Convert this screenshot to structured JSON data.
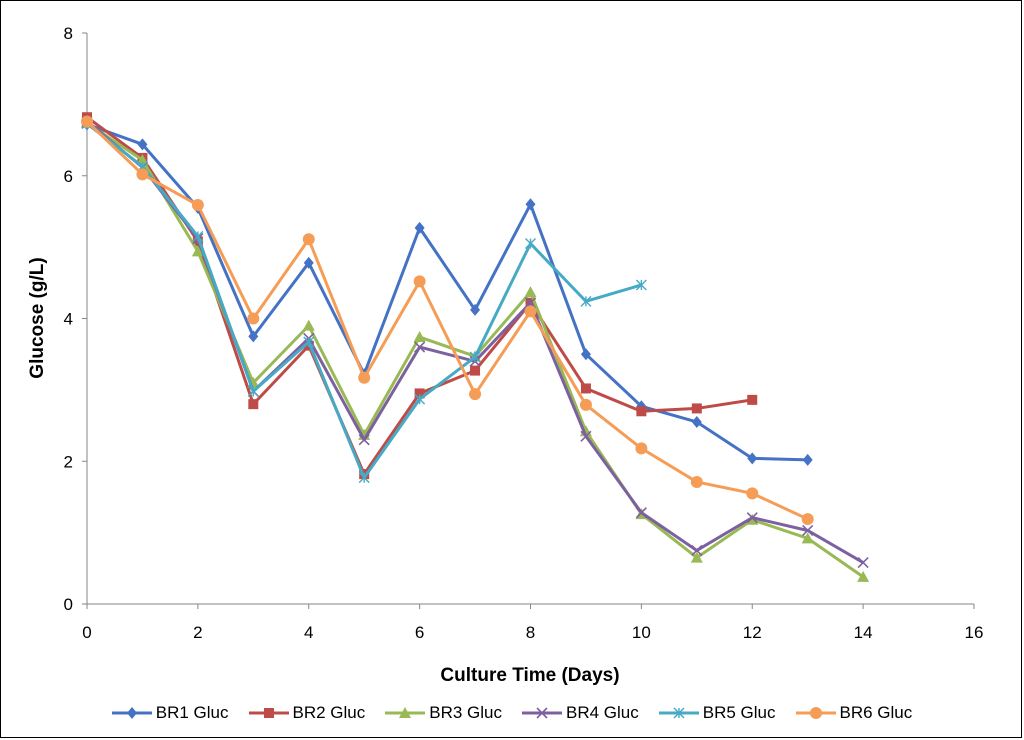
{
  "chart_data": {
    "type": "line",
    "xlabel": "Culture Time (Days)",
    "ylabel": "Glucose (g/L)",
    "xlim": [
      0,
      16
    ],
    "ylim": [
      0,
      8
    ],
    "xticks": [
      0,
      2,
      4,
      6,
      8,
      10,
      12,
      14,
      16
    ],
    "yticks": [
      0,
      2,
      4,
      6,
      8
    ],
    "grid": false,
    "legend_position": "bottom",
    "series": [
      {
        "name": "BR1 Gluc",
        "color": "#4472C4",
        "marker": "diamond",
        "x": [
          0,
          1,
          2,
          3,
          4,
          5,
          6,
          7,
          8,
          9,
          10,
          11,
          12,
          13
        ],
        "y": [
          6.72,
          6.44,
          5.55,
          3.75,
          4.78,
          3.22,
          5.27,
          4.12,
          5.6,
          3.5,
          2.77,
          2.55,
          2.04,
          2.02
        ]
      },
      {
        "name": "BR2 Gluc",
        "color": "#BE4B48",
        "marker": "square",
        "x": [
          0,
          1,
          2,
          3,
          4,
          5,
          6,
          7,
          8,
          9,
          10,
          11,
          12
        ],
        "y": [
          6.82,
          6.25,
          5.08,
          2.8,
          3.62,
          1.82,
          2.95,
          3.27,
          4.22,
          3.02,
          2.7,
          2.74,
          2.86
        ]
      },
      {
        "name": "BR3 Gluc",
        "color": "#98B954",
        "marker": "triangle",
        "x": [
          0,
          1,
          2,
          3,
          4,
          5,
          6,
          7,
          8,
          9,
          10,
          11,
          12,
          13,
          14
        ],
        "y": [
          6.74,
          6.22,
          4.94,
          3.1,
          3.9,
          2.37,
          3.74,
          3.47,
          4.37,
          2.42,
          1.26,
          0.65,
          1.18,
          0.92,
          0.38
        ]
      },
      {
        "name": "BR4 Gluc",
        "color": "#7D60A0",
        "marker": "x",
        "x": [
          0,
          1,
          2,
          3,
          4,
          5,
          6,
          7,
          8,
          9,
          10,
          11,
          12,
          13,
          14
        ],
        "y": [
          6.76,
          6.12,
          5.12,
          2.98,
          3.72,
          2.3,
          3.6,
          3.4,
          4.22,
          2.35,
          1.28,
          0.75,
          1.21,
          1.03,
          0.58
        ]
      },
      {
        "name": "BR5 Gluc",
        "color": "#46AAC5",
        "marker": "star",
        "x": [
          0,
          1,
          2,
          3,
          4,
          5,
          6,
          7,
          8,
          9,
          10
        ],
        "y": [
          6.73,
          6.13,
          5.15,
          2.98,
          3.67,
          1.77,
          2.87,
          3.46,
          5.05,
          4.24,
          4.47
        ]
      },
      {
        "name": "BR6 Gluc",
        "color": "#F59D56",
        "marker": "circle",
        "x": [
          0,
          1,
          2,
          3,
          4,
          5,
          6,
          7,
          8,
          9,
          10,
          11,
          12,
          13
        ],
        "y": [
          6.76,
          6.02,
          5.59,
          4.0,
          5.11,
          3.17,
          4.52,
          2.94,
          4.1,
          2.79,
          2.18,
          1.71,
          1.55,
          1.19
        ]
      }
    ]
  }
}
